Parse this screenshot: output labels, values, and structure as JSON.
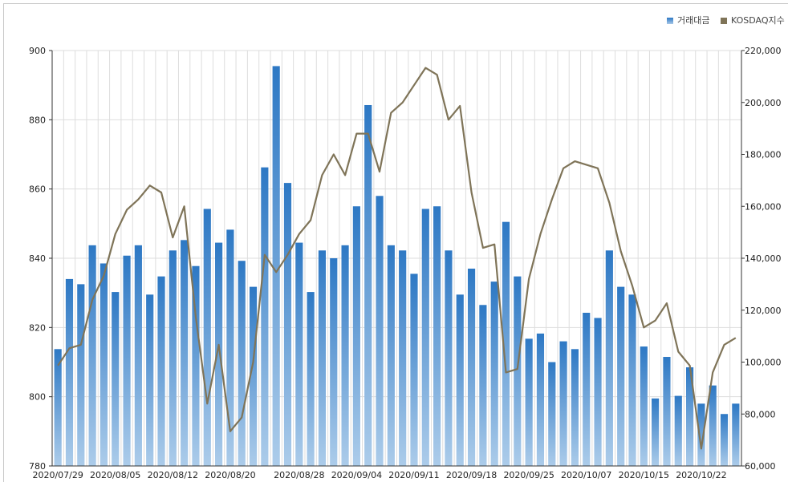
{
  "legend": {
    "items": [
      {
        "label": "거래대금",
        "color": "#2d78c4"
      },
      {
        "label": "KOSDAQ지수",
        "color": "#7f7458"
      }
    ]
  },
  "chart_data": {
    "type": "bar+line",
    "categories": [
      "2020/07/29",
      "2020/07/30",
      "2020/07/31",
      "2020/08/03",
      "2020/08/04",
      "2020/08/05",
      "2020/08/06",
      "2020/08/07",
      "2020/08/10",
      "2020/08/11",
      "2020/08/12",
      "2020/08/13",
      "2020/08/14",
      "2020/08/18",
      "2020/08/19",
      "2020/08/20",
      "2020/08/21",
      "2020/08/24",
      "2020/08/25",
      "2020/08/26",
      "2020/08/27",
      "2020/08/28",
      "2020/08/31",
      "2020/09/01",
      "2020/09/02",
      "2020/09/03",
      "2020/09/04",
      "2020/09/07",
      "2020/09/08",
      "2020/09/09",
      "2020/09/10",
      "2020/09/11",
      "2020/09/14",
      "2020/09/15",
      "2020/09/16",
      "2020/09/17",
      "2020/09/18",
      "2020/09/21",
      "2020/09/22",
      "2020/09/23",
      "2020/09/24",
      "2020/09/25",
      "2020/09/28",
      "2020/09/29",
      "2020/10/05",
      "2020/10/06",
      "2020/10/07",
      "2020/10/08",
      "2020/10/12",
      "2020/10/13",
      "2020/10/14",
      "2020/10/15",
      "2020/10/16",
      "2020/10/19",
      "2020/10/20",
      "2020/10/21",
      "2020/10/22",
      "2020/10/23",
      "2020/10/26",
      "2020/10/27"
    ],
    "x_tick_labels": [
      "2020/07/29",
      "2020/08/05",
      "2020/08/12",
      "2020/08/20",
      "2020/08/28",
      "2020/09/04",
      "2020/09/11",
      "2020/09/18",
      "2020/09/25",
      "2020/10/07",
      "2020/10/15",
      "2020/10/22"
    ],
    "series": [
      {
        "name": "거래대금",
        "axis": "right",
        "type": "bar",
        "color": "#2d78c4",
        "values": [
          105000,
          132000,
          130000,
          145000,
          138000,
          127000,
          141000,
          145000,
          126000,
          133000,
          143000,
          147000,
          137000,
          159000,
          146000,
          151000,
          139000,
          129000,
          175000,
          214000,
          169000,
          146000,
          127000,
          143000,
          140000,
          145000,
          160000,
          199000,
          164000,
          145000,
          143000,
          134000,
          159000,
          160000,
          143000,
          126000,
          136000,
          122000,
          131000,
          154000,
          133000,
          109000,
          111000,
          100000,
          108000,
          105000,
          119000,
          117000,
          143000,
          129000,
          126000,
          106000,
          86000,
          102000,
          87000,
          98000,
          84000,
          91000,
          80000,
          84000
        ]
      },
      {
        "name": "KOSDAQ지수",
        "axis": "left",
        "type": "line",
        "color": "#7f7458",
        "values": [
          809,
          814,
          815,
          828,
          835,
          847,
          854,
          857,
          861,
          859,
          846,
          855,
          823,
          798,
          815,
          790,
          794,
          810,
          841,
          836,
          841,
          847,
          851,
          864,
          870,
          864,
          876,
          876,
          865,
          882,
          885,
          890,
          895,
          893,
          880,
          884,
          859,
          843,
          844,
          807,
          808,
          834,
          847,
          857,
          866,
          868,
          867,
          866,
          856,
          842,
          832,
          820,
          822,
          827,
          813,
          809,
          785,
          807,
          815,
          817
        ]
      }
    ],
    "y_left": {
      "min": 780,
      "max": 900,
      "ticks": [
        780,
        800,
        820,
        840,
        860,
        880,
        900
      ]
    },
    "y_right": {
      "min": 60000,
      "max": 220000,
      "ticks": [
        "60,000",
        "80,000",
        "100,000",
        "120,000",
        "140,000",
        "160,000",
        "180,000",
        "200,000",
        "220,000"
      ]
    },
    "grid": true,
    "legend_position": "top-right"
  }
}
